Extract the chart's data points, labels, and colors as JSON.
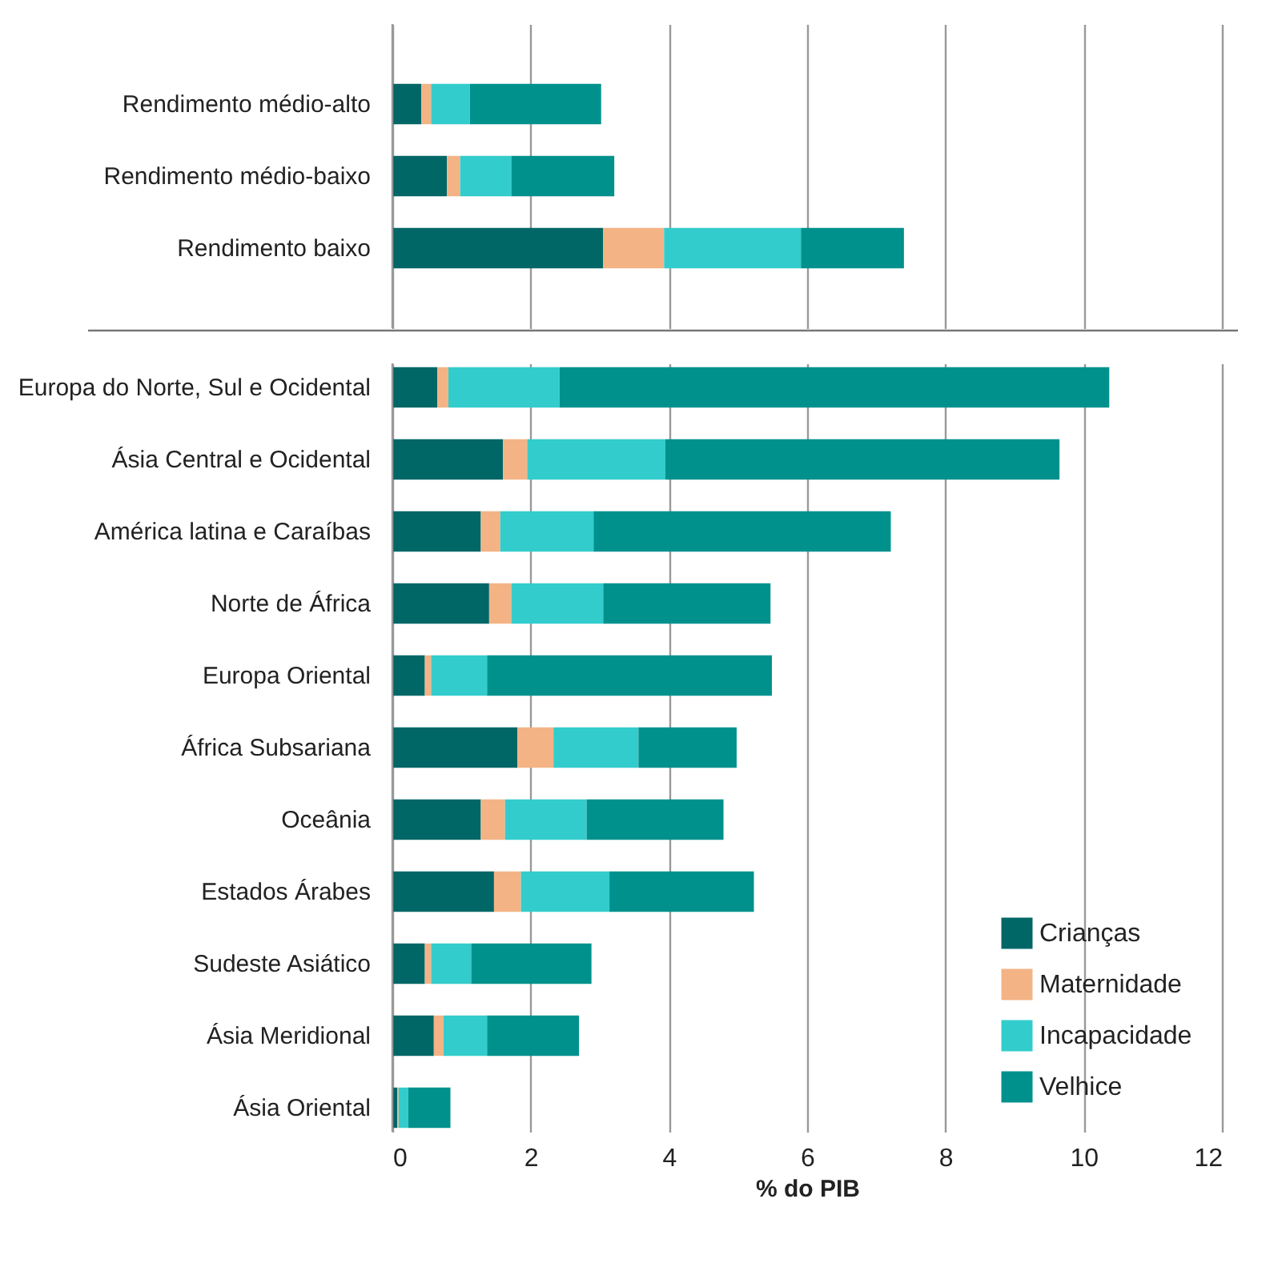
{
  "chart_data": [
    {
      "type": "bar",
      "orientation": "horizontal",
      "stacked": true,
      "categories": [
        "Rendimento médio-alto",
        "Rendimento médio-baixo",
        "Rendimento baixo"
      ],
      "xlim": [
        0,
        12
      ],
      "xticks": [
        0,
        2,
        4,
        6,
        8,
        10,
        12
      ],
      "grid": "x",
      "tick_labels": "y",
      "series": [
        {
          "color": "#006666",
          "values": [
            0.42,
            0.79,
            3.05
          ]
        },
        {
          "color": "#f4b385",
          "values": [
            0.14,
            0.19,
            0.88
          ]
        },
        {
          "color": "#33cccc",
          "values": [
            0.56,
            0.74,
            1.98
          ]
        },
        {
          "color": "#00918d",
          "values": [
            1.9,
            1.49,
            1.49
          ]
        }
      ]
    },
    {
      "type": "bar",
      "orientation": "horizontal",
      "stacked": true,
      "categories": [
        "Europa do Norte, Sul e Ocidental",
        "Ásia Central e Ocidental",
        "América latina e Caraíbas",
        "Norte de África",
        "Europa Oriental",
        "África Subsariana",
        "Oceânia",
        "Estados Árabes",
        "Sudeste Asiático",
        "Ásia Meridional",
        "Ásia Oriental"
      ],
      "xlabel": "% do PIB",
      "xlim": [
        0,
        12
      ],
      "xticks": [
        0,
        2,
        4,
        6,
        8,
        10,
        12
      ],
      "grid": "x",
      "legend": "bottom right",
      "series": [
        {
          "name": "Crianças",
          "color": "#006666",
          "values": [
            0.65,
            1.6,
            1.28,
            1.4,
            0.47,
            1.81,
            1.28,
            1.47,
            0.47,
            0.6,
            0.07
          ]
        },
        {
          "name": "Maternidade",
          "color": "#f4b385",
          "values": [
            0.16,
            0.35,
            0.28,
            0.32,
            0.09,
            0.52,
            0.35,
            0.39,
            0.09,
            0.14,
            0.02
          ]
        },
        {
          "name": "Incapacidade",
          "color": "#33cccc",
          "values": [
            1.61,
            2.0,
            1.35,
            1.33,
            0.81,
            1.23,
            1.18,
            1.28,
            0.58,
            0.63,
            0.14
          ]
        },
        {
          "name": "Velhice",
          "color": "#00918d",
          "values": [
            7.95,
            5.7,
            4.3,
            2.42,
            4.12,
            1.42,
            1.98,
            2.09,
            1.74,
            1.33,
            0.61
          ]
        }
      ]
    }
  ]
}
